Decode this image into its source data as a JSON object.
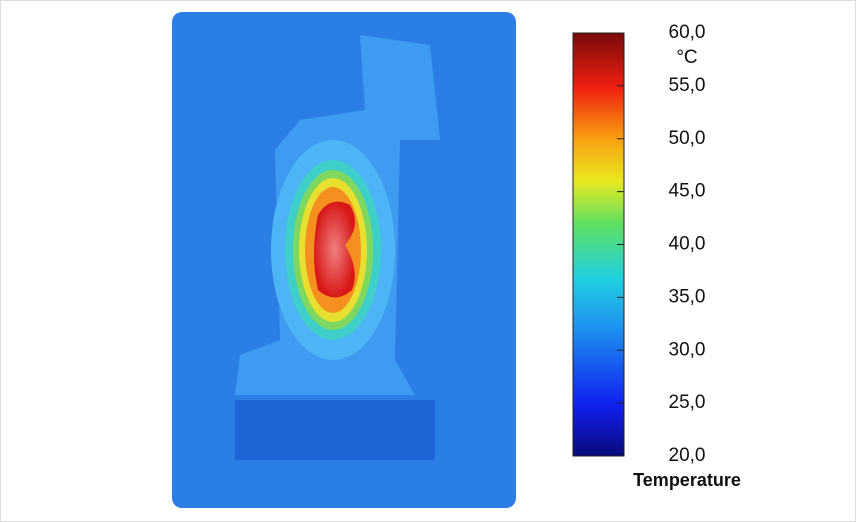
{
  "colorbar": {
    "title": "Temperature",
    "unit": "°C",
    "range": [
      20,
      60
    ],
    "ticks": [
      {
        "value": 60,
        "label": "60,0"
      },
      {
        "value": 55,
        "label": "55,0"
      },
      {
        "value": 50,
        "label": "50,0"
      },
      {
        "value": 45,
        "label": "45,0"
      },
      {
        "value": 40,
        "label": "40,0"
      },
      {
        "value": 35,
        "label": "35,0"
      },
      {
        "value": 30,
        "label": "30,0"
      },
      {
        "value": 25,
        "label": "25,0"
      },
      {
        "value": 20,
        "label": "20,0"
      }
    ]
  }
}
